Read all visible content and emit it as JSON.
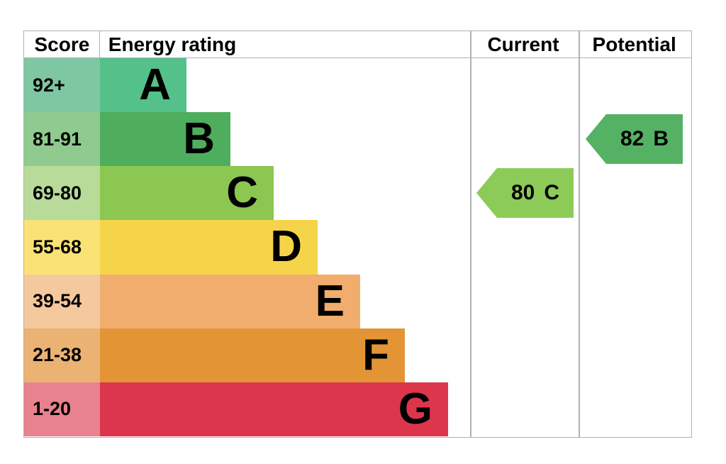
{
  "headers": {
    "score": "Score",
    "energy_rating": "Energy rating",
    "current": "Current",
    "potential": "Potential"
  },
  "chart_data": {
    "type": "bar",
    "title": "Energy rating",
    "bands": [
      {
        "band": "A",
        "score_range": "92+"
      },
      {
        "band": "B",
        "score_range": "81-91"
      },
      {
        "band": "C",
        "score_range": "69-80"
      },
      {
        "band": "D",
        "score_range": "55-68"
      },
      {
        "band": "E",
        "score_range": "39-54"
      },
      {
        "band": "F",
        "score_range": "21-38"
      },
      {
        "band": "G",
        "score_range": "1-20"
      }
    ],
    "current": {
      "score": "80",
      "band": "C"
    },
    "potential": {
      "score": "82",
      "band": "B"
    }
  },
  "colors": {
    "bands": {
      "A": {
        "bar": "#54c18a",
        "score": "#7fc7a2"
      },
      "B": {
        "bar": "#4fae5e",
        "score": "#90ca8f"
      },
      "C": {
        "bar": "#8cc751",
        "score": "#b9db99"
      },
      "D": {
        "bar": "#f6d44a",
        "score": "#fae374"
      },
      "E": {
        "bar": "#f0ad6d",
        "score": "#f5c99e"
      },
      "F": {
        "bar": "#e39435",
        "score": "#ebb274"
      },
      "G": {
        "bar": "#db364c",
        "score": "#e8828e"
      }
    },
    "current_arrow": "#8dcb59",
    "potential_arrow": "#55b264",
    "gridline": "#b0b0b0"
  }
}
